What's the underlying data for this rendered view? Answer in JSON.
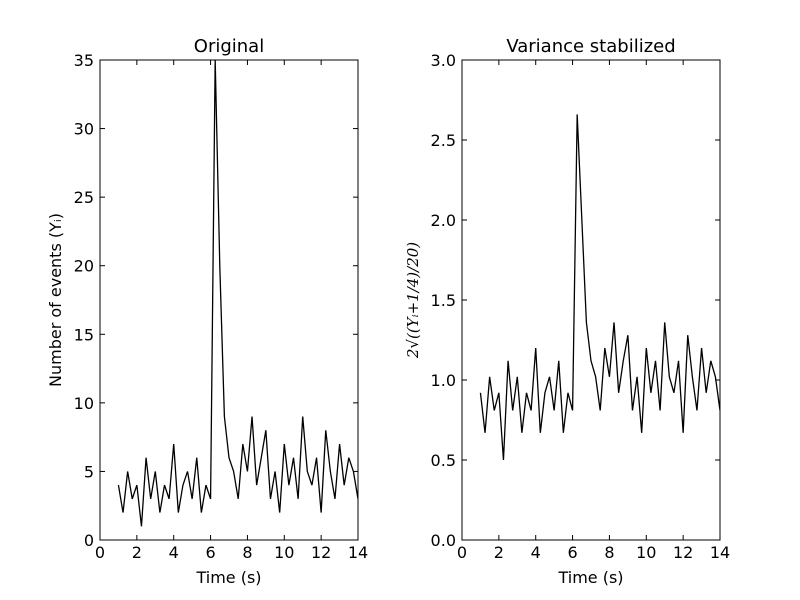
{
  "chart_data": [
    {
      "type": "line",
      "title": "Original",
      "x_label": "Time (s)",
      "y_label": "Number of events (Yᵢ)",
      "xlim": [
        0,
        14
      ],
      "xticks": [
        0,
        2,
        4,
        6,
        8,
        10,
        12,
        14
      ],
      "ylim": [
        0,
        35
      ],
      "yticks": [
        0,
        5,
        10,
        15,
        20,
        25,
        30,
        35
      ],
      "x": [
        1,
        1.25,
        1.5,
        1.75,
        2,
        2.25,
        2.5,
        2.75,
        3,
        3.25,
        3.5,
        3.75,
        4,
        4.25,
        4.5,
        4.75,
        5,
        5.25,
        5.5,
        5.75,
        6,
        6.25,
        6.5,
        6.75,
        7,
        7.25,
        7.5,
        7.75,
        8,
        8.25,
        8.5,
        8.75,
        9,
        9.25,
        9.5,
        9.75,
        10,
        10.25,
        10.5,
        10.75,
        11,
        11.25,
        11.5,
        11.75,
        12,
        12.25,
        12.5,
        12.75,
        13,
        13.25,
        13.5,
        13.75,
        14
      ],
      "series": [
        {
          "color": "#000000",
          "values": [
            4,
            2,
            5,
            3,
            4,
            1,
            6,
            3,
            5,
            2,
            4,
            3,
            7,
            2,
            4,
            5,
            3,
            6,
            2,
            4,
            3,
            35,
            20,
            9,
            6,
            5,
            3,
            7,
            5,
            9,
            4,
            6,
            8,
            3,
            5,
            2,
            7,
            4,
            6,
            3,
            9,
            5,
            4,
            6,
            2,
            8,
            5,
            3,
            7,
            4,
            6,
            5,
            3
          ]
        }
      ]
    },
    {
      "type": "line",
      "title": "Variance stabilized",
      "x_label": "Time (s)",
      "y_label": "2√((Yᵢ+1/4)/20)",
      "xlim": [
        0,
        14
      ],
      "xticks": [
        0,
        2,
        4,
        6,
        8,
        10,
        12,
        14
      ],
      "ylim": [
        0,
        3
      ],
      "yticks": [
        {
          "value": 0,
          "label": "0.0"
        },
        0.5,
        {
          "value": 1,
          "label": "1.0"
        },
        1.5,
        {
          "value": 2,
          "label": "2.0"
        },
        2.5,
        {
          "value": 3,
          "label": "3.0"
        }
      ],
      "x": [
        1,
        1.25,
        1.5,
        1.75,
        2,
        2.25,
        2.5,
        2.75,
        3,
        3.25,
        3.5,
        3.75,
        4,
        4.25,
        4.5,
        4.75,
        5,
        5.25,
        5.5,
        5.75,
        6,
        6.25,
        6.5,
        6.75,
        7,
        7.25,
        7.5,
        7.75,
        8,
        8.25,
        8.5,
        8.75,
        9,
        9.25,
        9.5,
        9.75,
        10,
        10.25,
        10.5,
        10.75,
        11,
        11.25,
        11.5,
        11.75,
        12,
        12.25,
        12.5,
        12.75,
        13,
        13.25,
        13.5,
        13.75,
        14
      ],
      "series": [
        {
          "color": "#000000",
          "values": [
            0.92,
            0.67,
            1.02,
            0.81,
            0.92,
            0.5,
            1.12,
            0.81,
            1.02,
            0.67,
            0.92,
            0.81,
            1.2,
            0.67,
            0.92,
            1.02,
            0.81,
            1.12,
            0.67,
            0.92,
            0.81,
            2.66,
            2.01,
            1.36,
            1.12,
            1.02,
            0.81,
            1.2,
            1.02,
            1.36,
            0.92,
            1.12,
            1.28,
            0.81,
            1.02,
            0.67,
            1.2,
            0.92,
            1.12,
            0.81,
            1.36,
            1.02,
            0.92,
            1.12,
            0.67,
            1.28,
            1.02,
            0.81,
            1.2,
            0.92,
            1.12,
            1.02,
            0.81
          ]
        }
      ]
    }
  ]
}
